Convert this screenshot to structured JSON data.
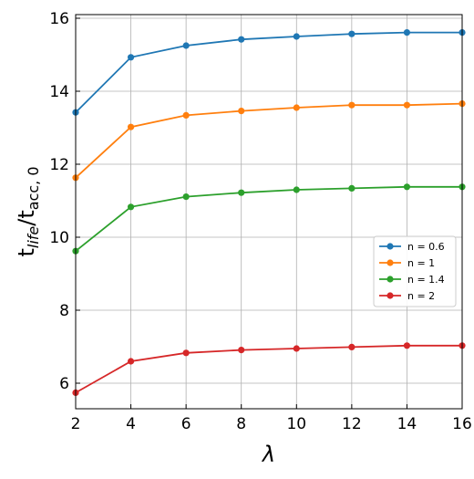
{
  "chart_data": {
    "type": "line",
    "title": "",
    "xlabel": "λ",
    "ylabel": "t_life/t_acc,0",
    "ylabel_parts": {
      "main_1": "t",
      "sub_1": "life",
      "slash": "/",
      "main_2": "t",
      "sub_2": "acc, 0"
    },
    "xlim": [
      2,
      16
    ],
    "ylim": [
      5.3,
      16.1
    ],
    "xticks": [
      2,
      4,
      6,
      8,
      10,
      12,
      14,
      16
    ],
    "yticks": [
      6,
      8,
      10,
      12,
      14,
      16
    ],
    "grid": true,
    "legend_position": "center-right",
    "x": [
      2,
      4,
      6,
      8,
      10,
      12,
      14,
      16
    ],
    "series": [
      {
        "name": "n = 0.6",
        "color": "#1f77b4",
        "values": [
          13.42,
          14.93,
          15.25,
          15.42,
          15.5,
          15.57,
          15.61,
          15.61
        ]
      },
      {
        "name": "n = 1",
        "color": "#ff7f0e",
        "values": [
          11.63,
          13.02,
          13.34,
          13.46,
          13.55,
          13.62,
          13.62,
          13.66
        ]
      },
      {
        "name": "n = 1.4",
        "color": "#2ca02c",
        "values": [
          9.62,
          10.83,
          11.11,
          11.22,
          11.3,
          11.34,
          11.38,
          11.38
        ]
      },
      {
        "name": "n = 2",
        "color": "#d62728",
        "values": [
          5.74,
          6.6,
          6.83,
          6.91,
          6.95,
          6.99,
          7.03,
          7.03
        ]
      }
    ]
  }
}
